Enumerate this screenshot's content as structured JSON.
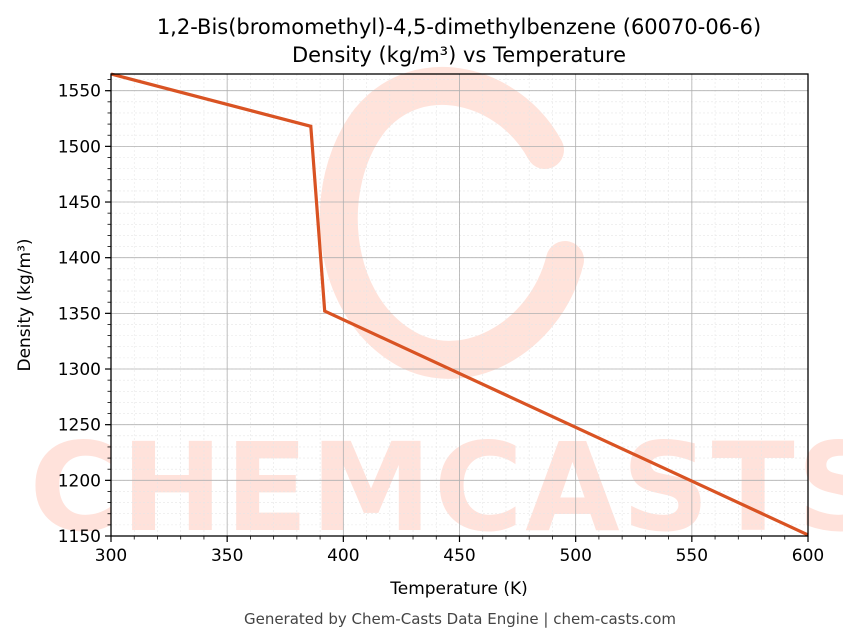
{
  "chart_data": {
    "type": "line",
    "title": "1,2-Bis(bromomethyl)-4,5-dimethylbenzene (60070-06-6)",
    "subtitle": "Density (kg/m³) vs Temperature",
    "xlabel": "Temperature (K)",
    "ylabel": "Density (kg/m³)",
    "xlim": [
      300,
      600
    ],
    "ylim": [
      1150,
      1565
    ],
    "x_ticks": [
      300,
      350,
      400,
      450,
      500,
      550,
      600
    ],
    "y_ticks": [
      1150,
      1200,
      1250,
      1300,
      1350,
      1400,
      1450,
      1500,
      1550
    ],
    "grid": true,
    "line_color": "#d95323",
    "series": [
      {
        "x": [
          300,
          386,
          392,
          600
        ],
        "y": [
          1565,
          1518,
          1352,
          1151
        ]
      }
    ]
  },
  "watermark": {
    "text": "CHEMCASTS",
    "color": "#ffd9cf"
  },
  "footer": "Generated by Chem-Casts Data Engine | chem-casts.com"
}
